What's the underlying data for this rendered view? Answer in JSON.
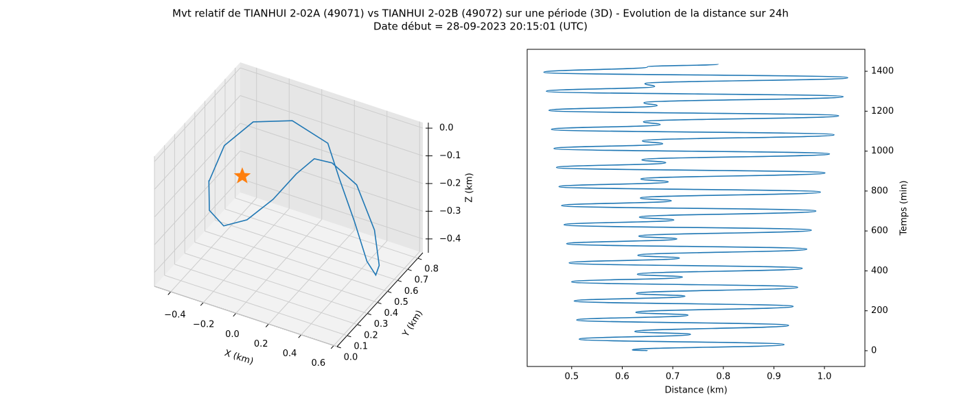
{
  "title": "Mvt relatif de TIANHUI 2-02A (49071) vs TIANHUI 2-02B (49072) sur une période (3D) - Evolution de la distance sur 24h",
  "subtitle": "Date début = 28-09-2023 20:15:01 (UTC)",
  "chart_data": [
    {
      "type": "line3d",
      "color": "#1f77b4",
      "x": [
        -0.29,
        -0.256,
        -0.199,
        -0.149,
        -0.082,
        -0.001,
        0.047,
        0.187,
        0.4,
        0.571,
        0.6,
        0.548,
        0.463,
        0.356,
        0.233,
        0.223,
        -0.026,
        -0.204,
        -0.288,
        -0.29
      ],
      "y": [
        0.2,
        0.15,
        0.2,
        0.35,
        0.5,
        0.6,
        0.7,
        0.65,
        0.55,
        0.45,
        0.45,
        0.5,
        0.55,
        0.6,
        0.65,
        0.55,
        0.6,
        0.5,
        0.35,
        0.2
      ],
      "z": [
        -0.106,
        -0.188,
        -0.253,
        -0.281,
        -0.254,
        -0.186,
        -0.162,
        -0.13,
        -0.128,
        -0.218,
        -0.34,
        -0.405,
        -0.392,
        -0.29,
        -0.18,
        -0.012,
        0.001,
        0.002,
        -0.04,
        -0.111
      ],
      "marker": {
        "x": -0.147,
        "y": 0.3,
        "z": -0.103,
        "color": "#ff7f0e"
      },
      "xlabel": "X (km)",
      "ylabel": "Y (km)",
      "zlabel": "Z (km)",
      "xlim": [
        -0.5,
        0.62
      ],
      "ylim": [
        0,
        0.85
      ],
      "zlim": [
        -0.45,
        0.02
      ],
      "xticks": [
        {
          "value": -0.4,
          "label": "−0.4"
        },
        {
          "value": -0.2,
          "label": "−0.2"
        },
        {
          "value": 0,
          "label": "0.0"
        },
        {
          "value": 0.2,
          "label": "0.2"
        },
        {
          "value": 0.4,
          "label": "0.4"
        },
        {
          "value": 0.6,
          "label": "0.6"
        }
      ],
      "yticks": [
        {
          "value": 0,
          "label": "0.0"
        },
        0.1,
        0.2,
        0.3,
        0.4,
        0.5,
        0.6,
        0.7,
        0.8
      ],
      "zticks": [
        {
          "value": 0,
          "label": "0.0"
        },
        {
          "value": -0.1,
          "label": "−0.1"
        },
        {
          "value": -0.2,
          "label": "−0.2"
        },
        {
          "value": -0.3,
          "label": "−0.3"
        },
        {
          "value": -0.4,
          "label": "−0.4"
        }
      ],
      "grid": true
    },
    {
      "type": "line",
      "color": "#1f77b4",
      "xlabel": "Distance (km)",
      "ylabel": "Temps (min)",
      "x": [
        0.65,
        0.62,
        0.92,
        0.515,
        0.735,
        0.625,
        0.929,
        0.51,
        0.73,
        0.627,
        0.938,
        0.505,
        0.724,
        0.628,
        0.947,
        0.5,
        0.719,
        0.63,
        0.956,
        0.495,
        0.713,
        0.631,
        0.965,
        0.49,
        0.708,
        0.633,
        0.974,
        0.485,
        0.702,
        0.634,
        0.983,
        0.48,
        0.697,
        0.636,
        0.992,
        0.475,
        0.691,
        0.637,
        1.001,
        0.47,
        0.686,
        0.639,
        1.01,
        0.465,
        0.68,
        0.64,
        1.019,
        0.46,
        0.675,
        0.642,
        1.028,
        0.455,
        0.669,
        0.643,
        1.037,
        0.45,
        0.664,
        0.645,
        1.046,
        0.445,
        0.65,
        0.79
      ],
      "values": [
        0,
        4,
        31,
        58,
        82,
        96,
        127,
        154,
        178,
        192,
        222,
        249,
        273,
        287,
        318,
        345,
        369,
        383,
        413,
        440,
        464,
        478,
        509,
        536,
        560,
        574,
        604,
        631,
        655,
        669,
        700,
        727,
        751,
        765,
        795,
        822,
        846,
        860,
        891,
        918,
        942,
        956,
        986,
        1013,
        1037,
        1051,
        1082,
        1109,
        1133,
        1147,
        1177,
        1204,
        1228,
        1242,
        1273,
        1300,
        1324,
        1338,
        1368,
        1395,
        1422,
        1436
      ],
      "xlim": [
        0.412,
        1.08
      ],
      "ylim": [
        -79,
        1510
      ],
      "xticks": [
        0.5,
        0.6,
        0.7,
        0.8,
        0.9,
        {
          "value": 1,
          "label": "1.0"
        }
      ],
      "yticks": [
        0,
        200,
        400,
        600,
        800,
        1000,
        1200,
        1400
      ],
      "y_axis_side": "right",
      "grid": false
    }
  ]
}
